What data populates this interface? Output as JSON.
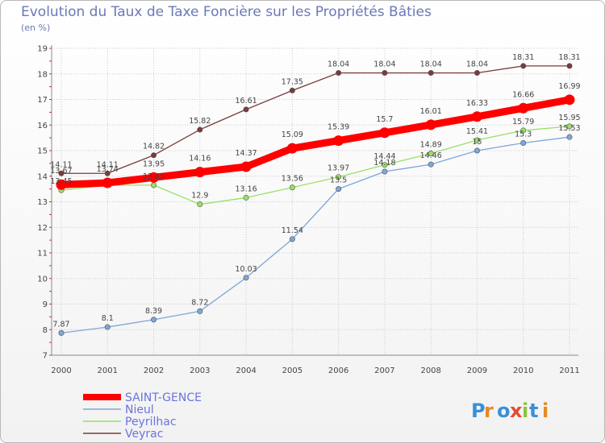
{
  "header": {
    "title": "Evolution du Taux de Taxe Foncière sur les Propriétés Bâties",
    "subtitle": "(en %)"
  },
  "logo": {
    "text": "Proxiti"
  },
  "chart_data": {
    "type": "line",
    "title": "Evolution du Taux de Taxe Foncière sur les Propriétés Bâties",
    "ylabel": "(en %)",
    "x": [
      "2000",
      "2001",
      "2002",
      "2003",
      "2004",
      "2005",
      "2006",
      "2007",
      "2008",
      "2009",
      "2010",
      "2011"
    ],
    "ylim": [
      7,
      19
    ],
    "yticks": [
      "7",
      "8",
      "9",
      "10",
      "11",
      "12",
      "13",
      "14",
      "15",
      "16",
      "17",
      "18",
      "19"
    ],
    "grid": true,
    "legend_position": "bottom-left",
    "series": [
      {
        "name": "SAINT-GENCE",
        "color": "#ff0000",
        "values": [
          13.67,
          13.74,
          13.95,
          14.16,
          14.37,
          15.09,
          15.39,
          15.7,
          16.01,
          16.33,
          16.66,
          16.99
        ],
        "labels": [
          "13.67",
          "13.74",
          "13.95",
          "14.16",
          "14.37",
          "15.09",
          "15.39",
          "15.7",
          "16.01",
          "16.33",
          "16.66",
          "16.99"
        ]
      },
      {
        "name": "Nieul",
        "color": "#7ea6d8",
        "values": [
          7.87,
          8.1,
          8.39,
          8.72,
          10.03,
          11.54,
          13.5,
          14.18,
          14.46,
          15,
          15.3,
          15.53
        ],
        "labels": [
          "7.87",
          "8.1",
          "8.39",
          "8.72",
          "10.03",
          "11.54",
          "13.5",
          "14.18",
          "14.46",
          "15",
          "15.3",
          "15.53"
        ]
      },
      {
        "name": "Peyrilhac",
        "color": "#99e066",
        "values": [
          13.45,
          13.65,
          13.65,
          12.9,
          13.16,
          13.56,
          13.97,
          14.44,
          14.89,
          15.41,
          15.79,
          15.95
        ],
        "labels": [
          "13.45",
          "",
          "13.65",
          "12.9",
          "13.16",
          "13.56",
          "13.97",
          "14.44",
          "14.89",
          "15.41",
          "15.79",
          "15.95"
        ]
      },
      {
        "name": "Veyrac",
        "color": "#7a3b3b",
        "values": [
          14.11,
          14.11,
          14.82,
          15.82,
          16.61,
          17.35,
          18.04,
          18.04,
          18.04,
          18.04,
          18.31,
          18.31
        ],
        "labels": [
          "14.11",
          "14.11",
          "14.82",
          "15.82",
          "16.61",
          "17.35",
          "18.04",
          "18.04",
          "18.04",
          "18.04",
          "18.31",
          "18.31"
        ]
      }
    ]
  }
}
